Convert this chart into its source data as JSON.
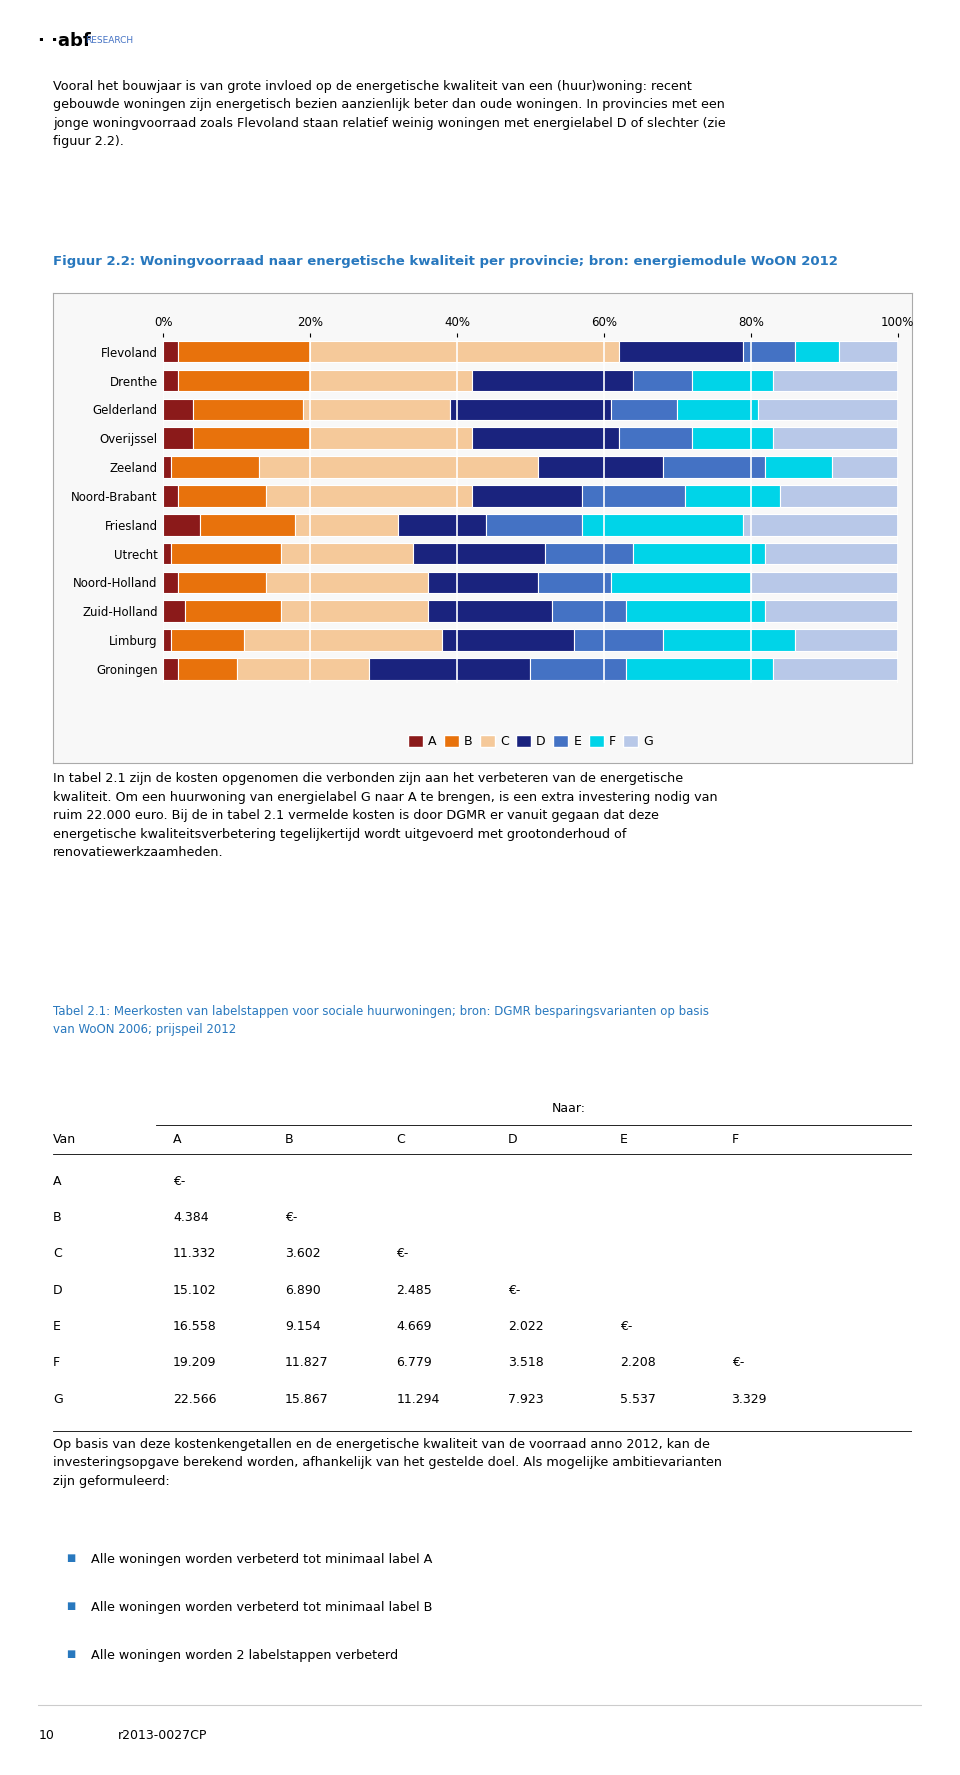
{
  "title": "Figuur 2.2: Woningvoorraad naar energetische kwaliteit per provincie; bron: energiemodule WoON 2012",
  "title_color": "#2878BE",
  "provinces": [
    "Flevoland",
    "Drenthe",
    "Gelderland",
    "Overijssel",
    "Zeeland",
    "Noord-Brabant",
    "Friesland",
    "Utrecht",
    "Noord-Holland",
    "Zuid-Holland",
    "Limburg",
    "Groningen"
  ],
  "labels": [
    "A",
    "B",
    "C",
    "D",
    "E",
    "F",
    "G"
  ],
  "colors": [
    "#8B1A1A",
    "#E8720C",
    "#F5C99A",
    "#1A237E",
    "#4472C4",
    "#00D4E8",
    "#B8C8E8"
  ],
  "data": {
    "Flevoland": [
      2,
      18,
      42,
      17,
      7,
      6,
      8
    ],
    "Drenthe": [
      2,
      18,
      22,
      22,
      8,
      11,
      17
    ],
    "Gelderland": [
      4,
      15,
      20,
      22,
      9,
      11,
      19
    ],
    "Overijssel": [
      4,
      16,
      22,
      20,
      10,
      11,
      17
    ],
    "Zeeland": [
      1,
      12,
      38,
      17,
      14,
      9,
      9
    ],
    "Noord-Brabant": [
      2,
      12,
      28,
      15,
      14,
      13,
      16
    ],
    "Friesland": [
      5,
      13,
      14,
      12,
      13,
      22,
      21
    ],
    "Utrecht": [
      1,
      15,
      18,
      18,
      12,
      18,
      18
    ],
    "Noord-Holland": [
      2,
      12,
      22,
      15,
      10,
      19,
      20
    ],
    "Zuid-Holland": [
      3,
      13,
      20,
      17,
      10,
      19,
      18
    ],
    "Limburg": [
      1,
      10,
      27,
      18,
      12,
      18,
      14
    ],
    "Groningen": [
      2,
      8,
      18,
      22,
      13,
      20,
      17
    ]
  },
  "background_color": "#FFFFFF",
  "chart_bg": "#F5F5F5",
  "xticks": [
    0,
    20,
    40,
    60,
    80,
    100
  ],
  "xtick_labels": [
    "0%",
    "20%",
    "40%",
    "60%",
    "80%",
    "100%"
  ],
  "table_data": {
    "rows": [
      [
        "A",
        "€-",
        "",
        "",
        "",
        "",
        ""
      ],
      [
        "B",
        "4.384",
        "€-",
        "",
        "",
        "",
        ""
      ],
      [
        "C",
        "11.332",
        "3.602",
        "€-",
        "",
        "",
        ""
      ],
      [
        "D",
        "15.102",
        "6.890",
        "2.485",
        "€-",
        "",
        ""
      ],
      [
        "E",
        "16.558",
        "9.154",
        "4.669",
        "2.022",
        "€-",
        ""
      ],
      [
        "F",
        "19.209",
        "11.827",
        "6.779",
        "3.518",
        "2.208",
        "€-"
      ],
      [
        "G",
        "22.566",
        "15.867",
        "11.294",
        "7.923",
        "5.537",
        "3.329"
      ]
    ]
  },
  "bullets": [
    "Alle woningen worden verbeterd tot minimaal label A",
    "Alle woningen worden verbeterd tot minimaal label B",
    "Alle woningen worden 2 labelstappen verbeterd"
  ]
}
